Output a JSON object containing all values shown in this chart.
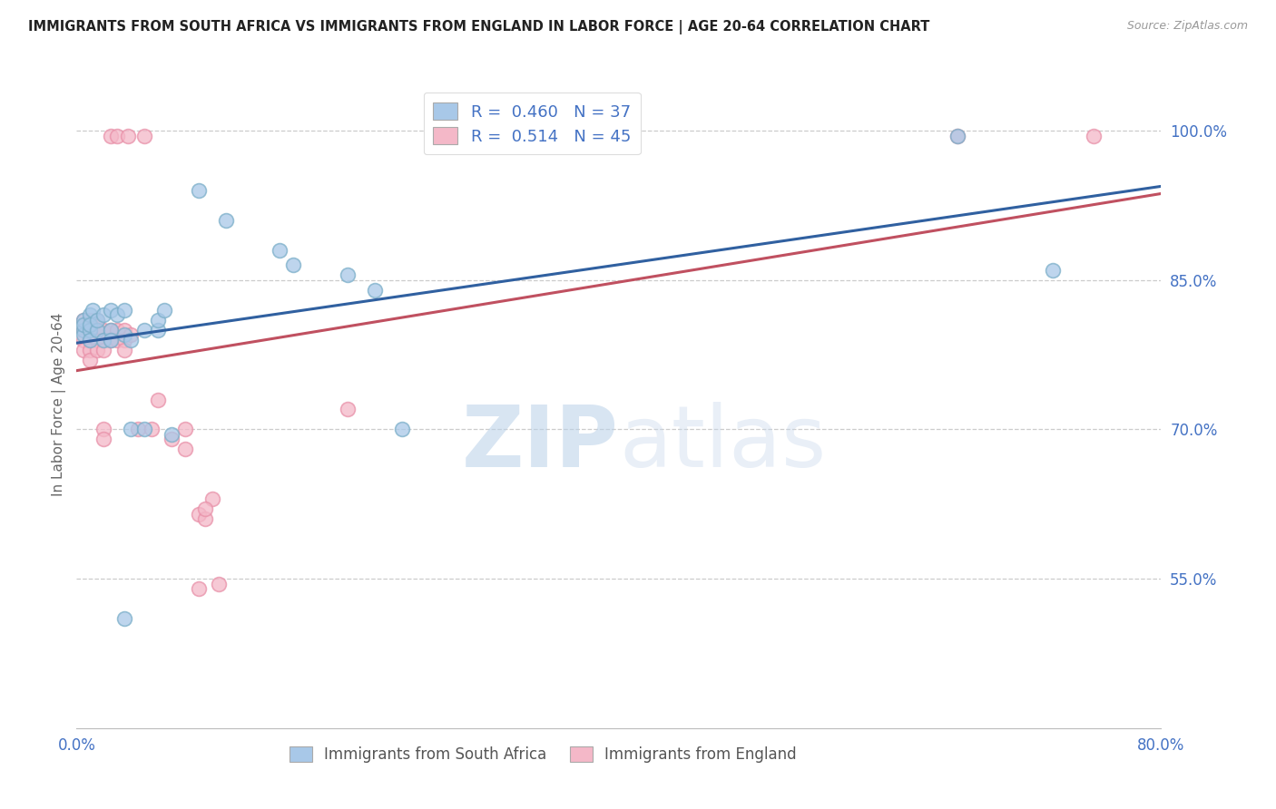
{
  "title": "IMMIGRANTS FROM SOUTH AFRICA VS IMMIGRANTS FROM ENGLAND IN LABOR FORCE | AGE 20-64 CORRELATION CHART",
  "source": "Source: ZipAtlas.com",
  "ylabel": "In Labor Force | Age 20-64",
  "xlim": [
    0.0,
    0.8
  ],
  "ylim": [
    0.4,
    1.05
  ],
  "ytick_vals": [
    0.55,
    0.7,
    0.85,
    1.0
  ],
  "ytick_labels": [
    "55.0%",
    "70.0%",
    "85.0%",
    "100.0%"
  ],
  "xtick_vals": [
    0.0,
    0.2,
    0.4,
    0.6,
    0.8
  ],
  "xtick_labels": [
    "0.0%",
    "",
    "",
    "",
    "80.0%"
  ],
  "blue_label": "Immigrants from South Africa",
  "pink_label": "Immigrants from England",
  "blue_R": 0.46,
  "blue_N": 37,
  "pink_R": 0.514,
  "pink_N": 45,
  "blue_color": "#a8c8e8",
  "pink_color": "#f4b8c8",
  "blue_edge_color": "#7aaec8",
  "pink_edge_color": "#e890a8",
  "blue_line_color": "#3060a0",
  "pink_line_color": "#c05060",
  "blue_scatter": [
    [
      0.005,
      0.8
    ],
    [
      0.005,
      0.81
    ],
    [
      0.005,
      0.795
    ],
    [
      0.005,
      0.805
    ],
    [
      0.01,
      0.815
    ],
    [
      0.01,
      0.8
    ],
    [
      0.01,
      0.79
    ],
    [
      0.01,
      0.805
    ],
    [
      0.012,
      0.82
    ],
    [
      0.015,
      0.8
    ],
    [
      0.015,
      0.81
    ],
    [
      0.02,
      0.815
    ],
    [
      0.02,
      0.79
    ],
    [
      0.025,
      0.8
    ],
    [
      0.025,
      0.82
    ],
    [
      0.03,
      0.815
    ],
    [
      0.035,
      0.795
    ],
    [
      0.04,
      0.79
    ],
    [
      0.05,
      0.8
    ],
    [
      0.06,
      0.8
    ],
    [
      0.04,
      0.7
    ],
    [
      0.05,
      0.7
    ],
    [
      0.07,
      0.695
    ],
    [
      0.09,
      0.94
    ],
    [
      0.11,
      0.91
    ],
    [
      0.15,
      0.88
    ],
    [
      0.16,
      0.865
    ],
    [
      0.2,
      0.855
    ],
    [
      0.22,
      0.84
    ],
    [
      0.24,
      0.7
    ],
    [
      0.035,
      0.51
    ],
    [
      0.65,
      0.995
    ],
    [
      0.72,
      0.86
    ],
    [
      0.06,
      0.81
    ],
    [
      0.035,
      0.82
    ],
    [
      0.065,
      0.82
    ],
    [
      0.025,
      0.79
    ]
  ],
  "pink_scatter": [
    [
      0.005,
      0.81
    ],
    [
      0.005,
      0.8
    ],
    [
      0.005,
      0.79
    ],
    [
      0.005,
      0.78
    ],
    [
      0.01,
      0.81
    ],
    [
      0.01,
      0.8
    ],
    [
      0.01,
      0.79
    ],
    [
      0.01,
      0.78
    ],
    [
      0.01,
      0.77
    ],
    [
      0.015,
      0.81
    ],
    [
      0.015,
      0.8
    ],
    [
      0.015,
      0.79
    ],
    [
      0.015,
      0.78
    ],
    [
      0.02,
      0.8
    ],
    [
      0.02,
      0.79
    ],
    [
      0.02,
      0.78
    ],
    [
      0.025,
      0.8
    ],
    [
      0.025,
      0.79
    ],
    [
      0.03,
      0.8
    ],
    [
      0.03,
      0.79
    ],
    [
      0.035,
      0.8
    ],
    [
      0.035,
      0.79
    ],
    [
      0.035,
      0.78
    ],
    [
      0.04,
      0.795
    ],
    [
      0.045,
      0.7
    ],
    [
      0.055,
      0.7
    ],
    [
      0.07,
      0.69
    ],
    [
      0.08,
      0.68
    ],
    [
      0.09,
      0.615
    ],
    [
      0.095,
      0.61
    ],
    [
      0.1,
      0.63
    ],
    [
      0.02,
      0.7
    ],
    [
      0.02,
      0.69
    ],
    [
      0.025,
      0.995
    ],
    [
      0.03,
      0.995
    ],
    [
      0.038,
      0.995
    ],
    [
      0.05,
      0.995
    ],
    [
      0.09,
      0.54
    ],
    [
      0.105,
      0.545
    ],
    [
      0.2,
      0.72
    ],
    [
      0.06,
      0.73
    ],
    [
      0.08,
      0.7
    ],
    [
      0.095,
      0.62
    ],
    [
      0.65,
      0.995
    ],
    [
      0.75,
      0.995
    ]
  ],
  "watermark_zip": "ZIP",
  "watermark_atlas": "atlas",
  "background_color": "#ffffff",
  "grid_color": "#cccccc"
}
